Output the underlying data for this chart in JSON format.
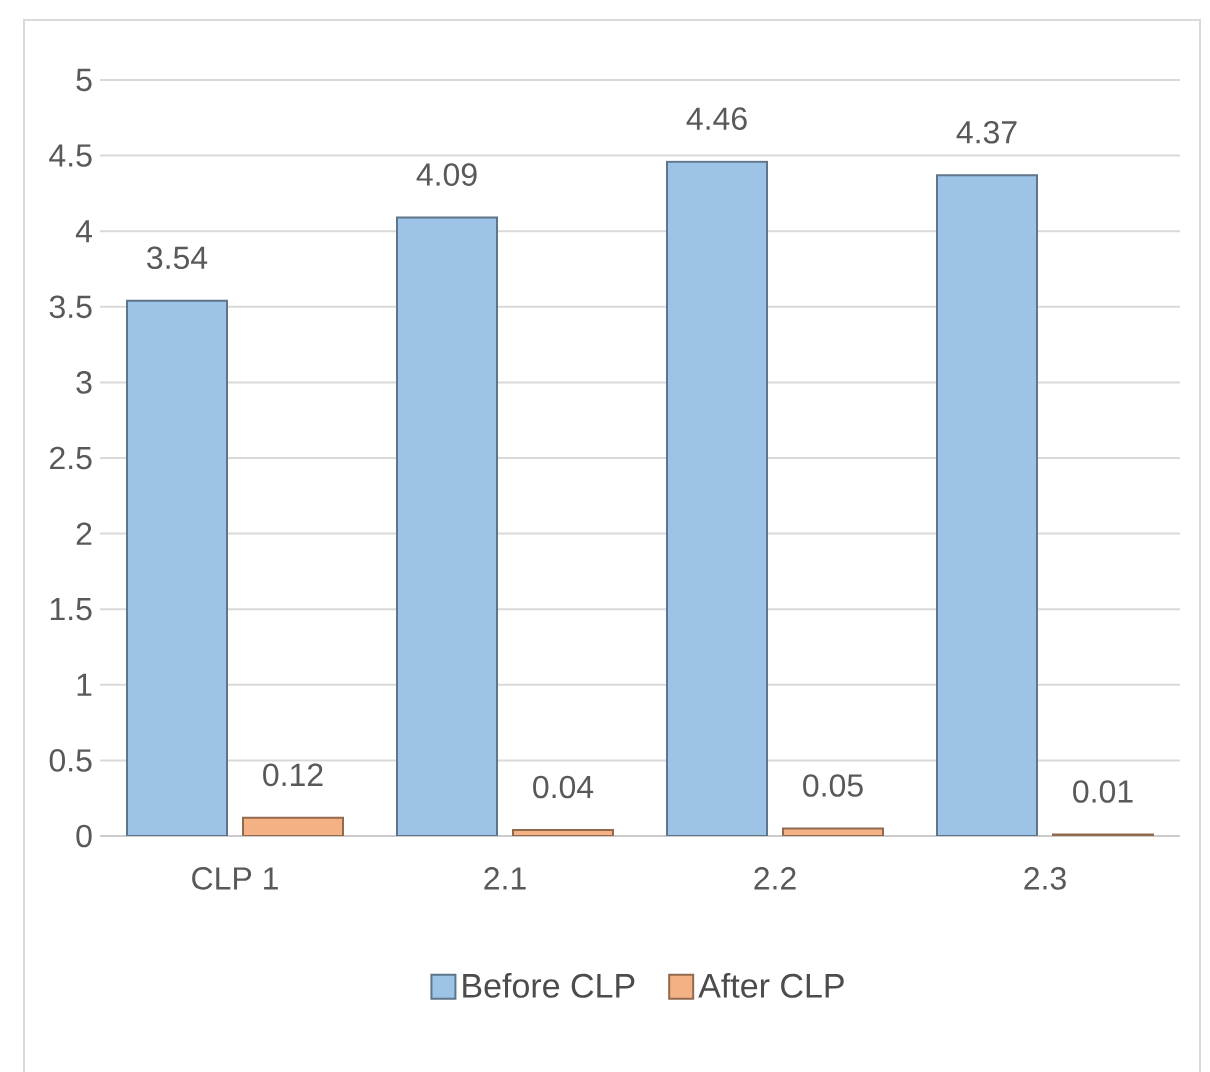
{
  "chart_data": {
    "type": "bar",
    "categories": [
      "CLP 1",
      "2.1",
      "2.2",
      "2.3"
    ],
    "series": [
      {
        "name": "Before CLP",
        "color": "#9dc3e6",
        "values": [
          3.54,
          4.09,
          4.46,
          4.37
        ]
      },
      {
        "name": "After CLP",
        "color": "#f4b183",
        "values": [
          0.12,
          0.04,
          0.05,
          0.01
        ]
      }
    ],
    "ylim": [
      0,
      5
    ],
    "yticks": [
      0,
      0.5,
      1,
      1.5,
      2,
      2.5,
      3,
      3.5,
      4,
      4.5,
      5
    ],
    "grid": "y",
    "legend": "bottom",
    "data_labels": true
  }
}
